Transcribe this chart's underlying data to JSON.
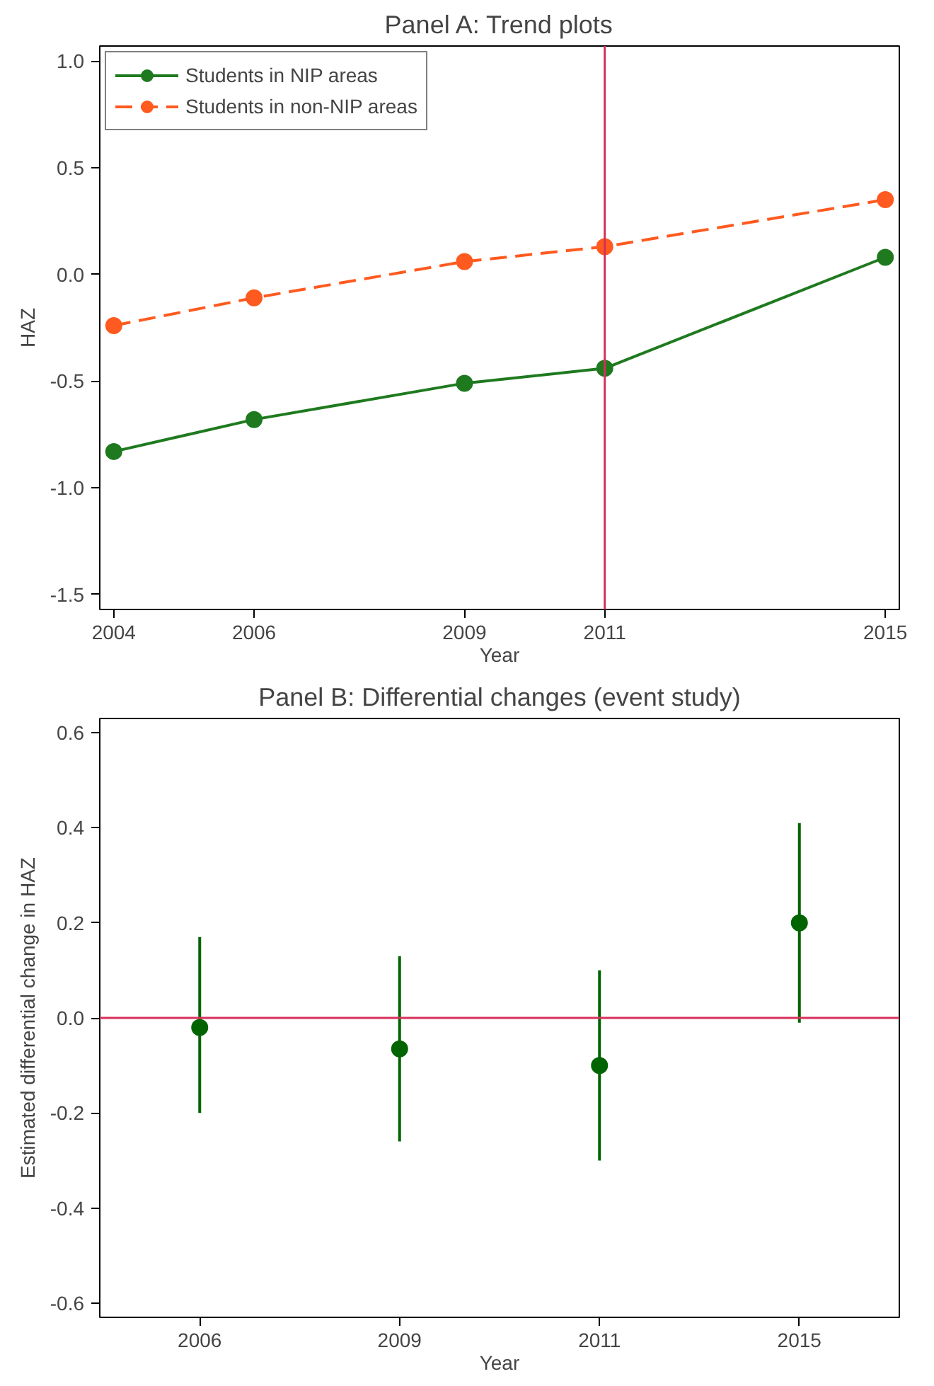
{
  "chart_data": [
    {
      "type": "line",
      "title": "Panel A: Trend plots",
      "xlabel": "Year",
      "ylabel": "HAZ",
      "x": [
        2004,
        2006,
        2009,
        2011,
        2015
      ],
      "series": [
        {
          "name": "Students in NIP areas",
          "color": "#1f7a1f",
          "values": [
            -0.83,
            -0.68,
            -0.51,
            -0.44,
            0.08
          ],
          "line_style": "solid"
        },
        {
          "name": "Students in non-NIP areas",
          "color": "#ff5a1f",
          "values": [
            -0.24,
            -0.11,
            0.06,
            0.13,
            0.35
          ],
          "line_style": "dashed"
        }
      ],
      "xlim": [
        2003.8,
        2015.2
      ],
      "xticks": [
        2004,
        2006,
        2009,
        2011,
        2015
      ],
      "ylim": [
        -1.57,
        1.07
      ],
      "yticks": [
        {
          "value": -1.5,
          "label": "-1.5"
        },
        {
          "value": -1,
          "label": "-1.0"
        },
        {
          "value": -0.5,
          "label": "-0.5"
        },
        {
          "value": 0,
          "label": "0.0"
        },
        {
          "value": 0.5,
          "label": "0.5"
        },
        {
          "value": 1,
          "label": "1.0"
        }
      ],
      "ref_lines": [
        {
          "axis": "x",
          "value": 2011,
          "color": "#d6305a"
        }
      ],
      "marker": "circle",
      "grid": false,
      "legend": "top left"
    },
    {
      "type": "scatter",
      "title": "Panel B: Differential changes (event study)",
      "xlabel": "Year",
      "ylabel": "Estimated differential change in HAZ",
      "categories": [
        "2006",
        "2009",
        "2011",
        "2015"
      ],
      "series": [
        {
          "color": "#006400",
          "values": [
            -0.02,
            -0.065,
            -0.1,
            0.2
          ],
          "errors": [
            [
              -0.2,
              0.17
            ],
            [
              -0.26,
              0.13
            ],
            [
              -0.3,
              0.1
            ],
            [
              -0.01,
              0.41
            ]
          ]
        }
      ],
      "ylim": [
        -0.63,
        0.63
      ],
      "yticks": [
        {
          "value": -0.6,
          "label": "-0.6"
        },
        {
          "value": -0.4,
          "label": "-0.4"
        },
        {
          "value": -0.2,
          "label": "-0.2"
        },
        {
          "value": 0,
          "label": "0.0"
        },
        {
          "value": 0.2,
          "label": "0.2"
        },
        {
          "value": 0.4,
          "label": "0.4"
        },
        {
          "value": 0.6,
          "label": "0.6"
        }
      ],
      "ref_lines": [
        {
          "axis": "y",
          "value": 0,
          "color": "#d6305a"
        }
      ],
      "marker": "circle",
      "grid": false,
      "legend": false
    }
  ]
}
